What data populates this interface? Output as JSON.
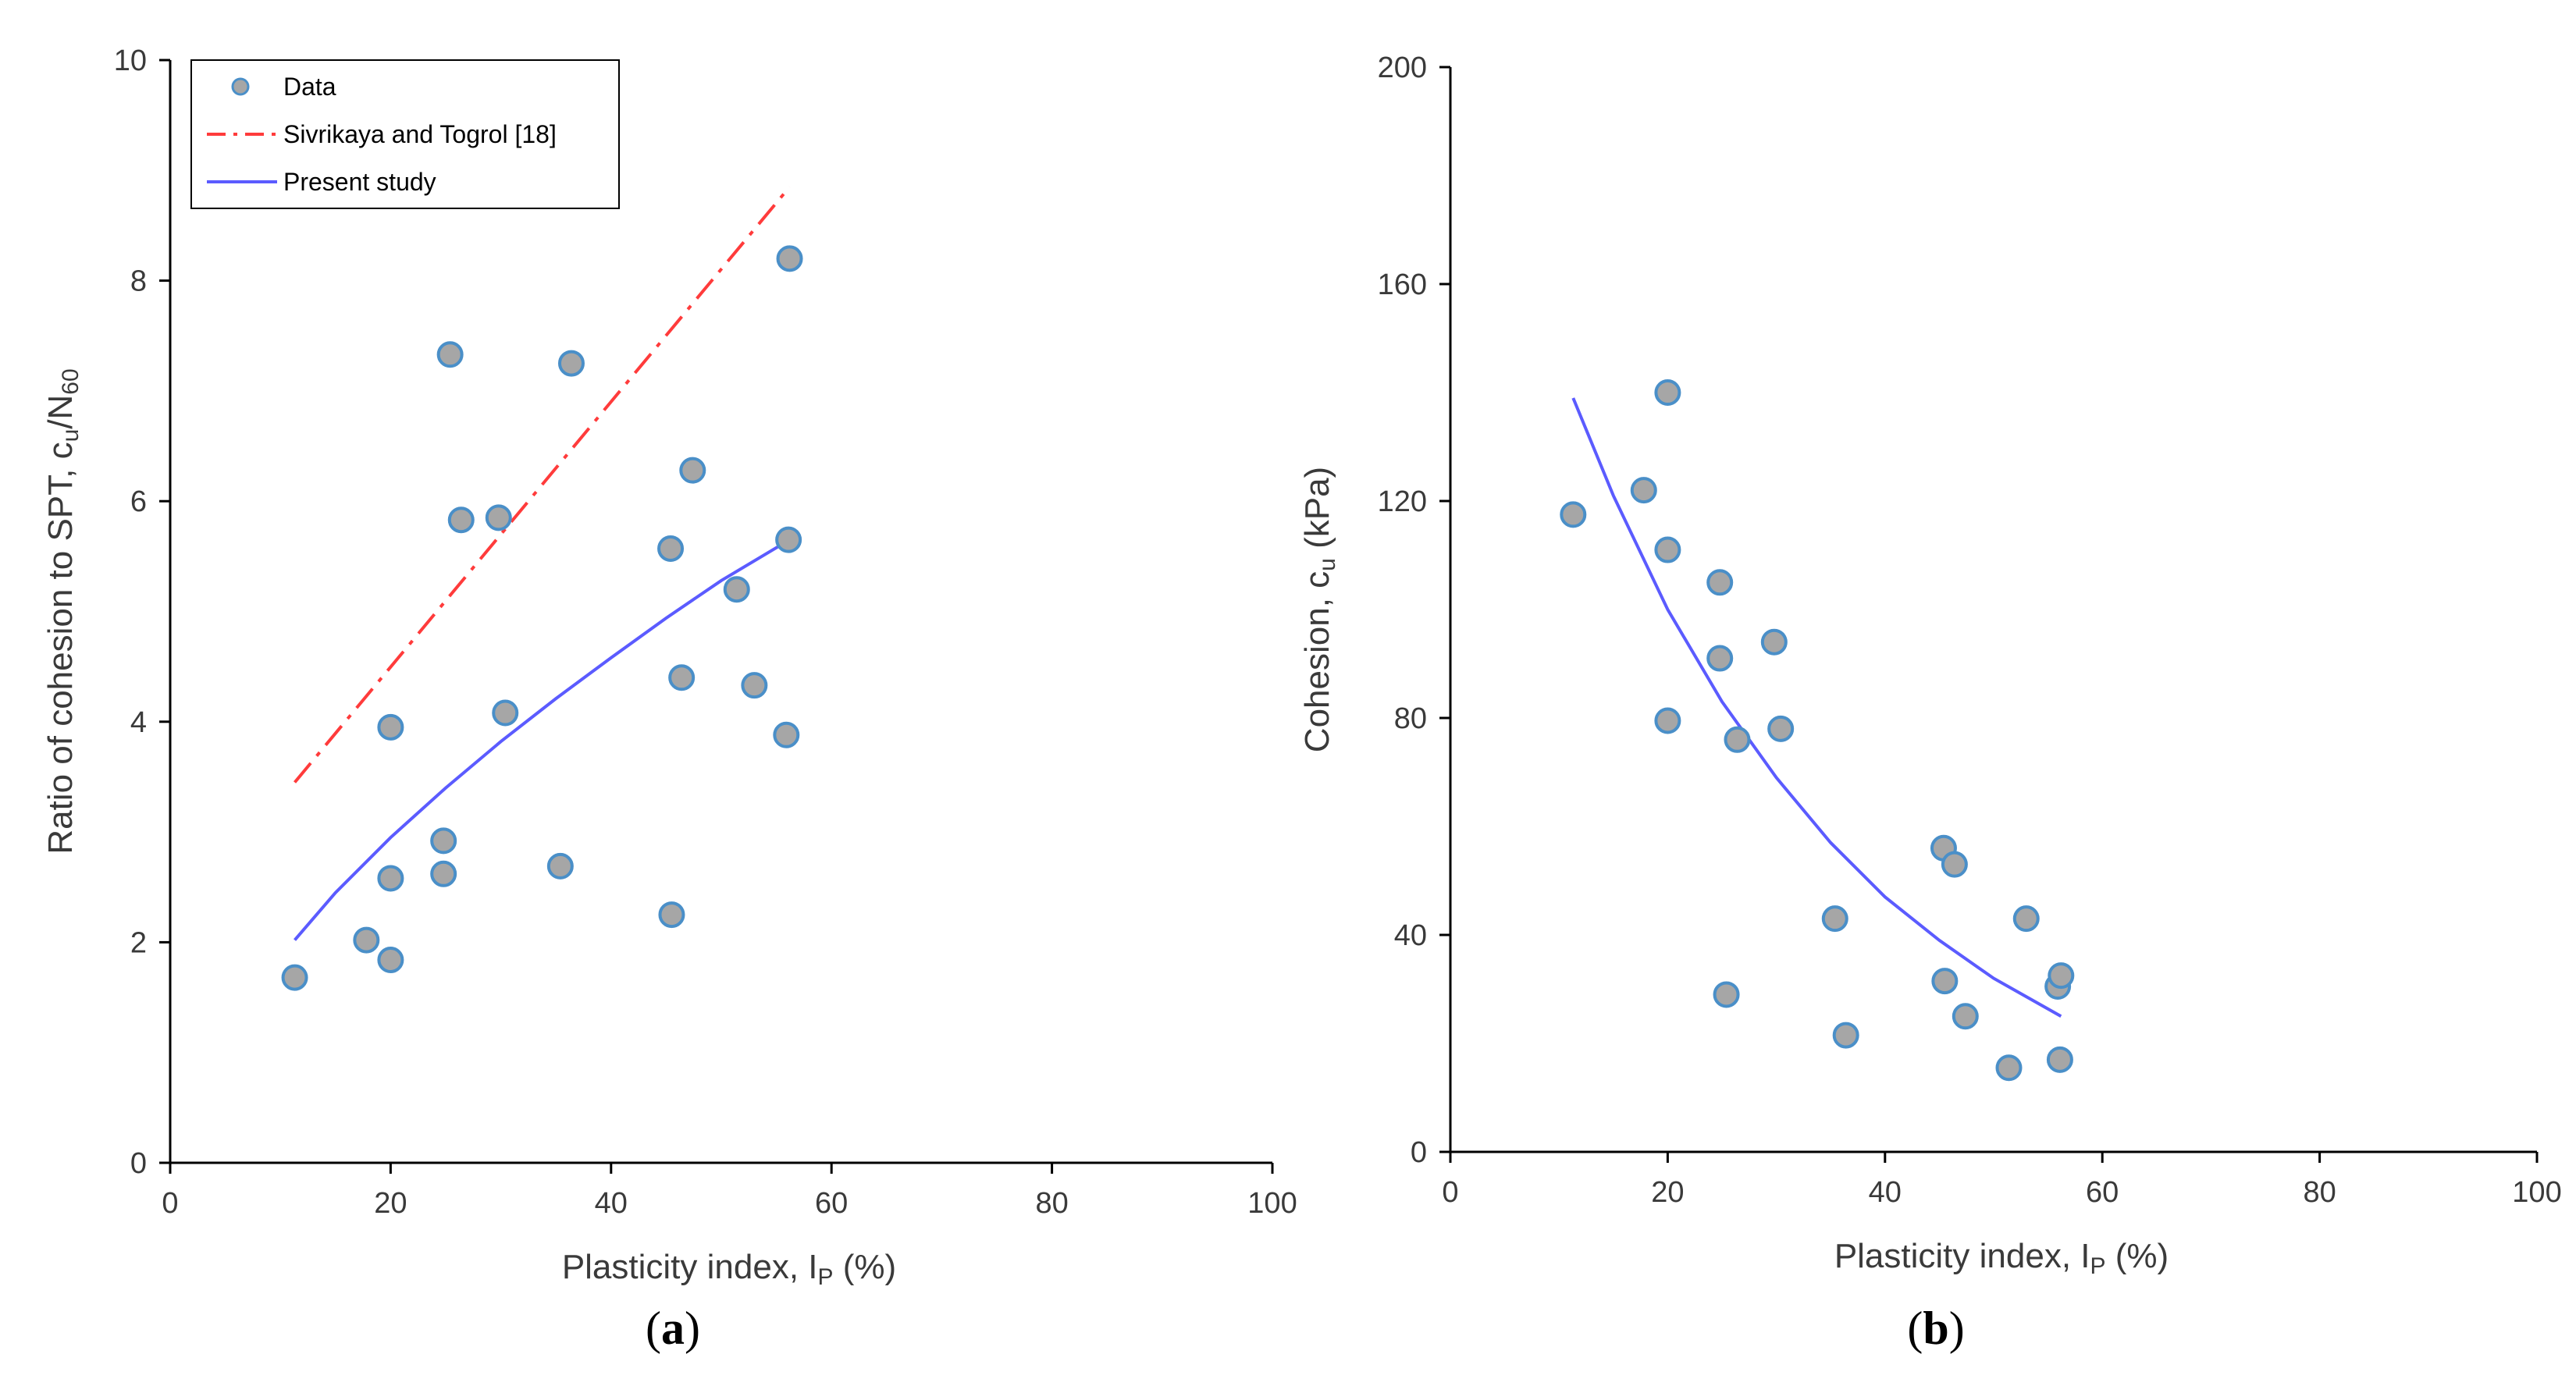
{
  "chart_data": [
    {
      "type": "scatter",
      "panel_label": "a",
      "xlabel": {
        "main": "Plasticity index, I",
        "sub": "P",
        "suffix": " (%)"
      },
      "ylabel": {
        "main": "Ratio of cohesion to SPT, c",
        "sub": "u",
        "mid": "/N",
        "sub2": "60"
      },
      "xlim": [
        0,
        100
      ],
      "ylim": [
        0,
        10
      ],
      "xticks": [
        0,
        20,
        40,
        60,
        80,
        100
      ],
      "yticks": [
        0,
        2,
        4,
        6,
        8,
        10
      ],
      "legend": {
        "position": "top-left",
        "entries": [
          {
            "label": "Data",
            "kind": "marker"
          },
          {
            "label": "Sivrikaya and Togrol [18]",
            "kind": "dashdot"
          },
          {
            "label": "Present study",
            "kind": "line"
          }
        ]
      },
      "series": [
        {
          "name": "Data",
          "kind": "scatter",
          "points": [
            [
              11.3,
              1.68
            ],
            [
              17.8,
              2.02
            ],
            [
              20.0,
              1.84
            ],
            [
              20.0,
              2.58
            ],
            [
              20.0,
              3.95
            ],
            [
              24.8,
              2.92
            ],
            [
              24.8,
              2.62
            ],
            [
              25.4,
              7.33
            ],
            [
              26.4,
              5.83
            ],
            [
              29.8,
              5.85
            ],
            [
              30.4,
              4.08
            ],
            [
              35.4,
              2.69
            ],
            [
              36.4,
              7.25
            ],
            [
              45.4,
              5.57
            ],
            [
              45.5,
              2.25
            ],
            [
              46.4,
              4.4
            ],
            [
              47.4,
              6.28
            ],
            [
              51.4,
              5.2
            ],
            [
              53.0,
              4.33
            ],
            [
              55.9,
              3.88
            ],
            [
              56.1,
              5.65
            ],
            [
              56.2,
              8.2
            ]
          ]
        },
        {
          "name": "Sivrikaya and Togrol [18]",
          "kind": "line",
          "style": "dashdot",
          "color": "#ff3b3b",
          "points": [
            [
              11.3,
              3.45
            ],
            [
              56.2,
              8.85
            ]
          ]
        },
        {
          "name": "Present study",
          "kind": "line",
          "style": "solid",
          "color": "#5b5bff",
          "points": [
            [
              11.3,
              2.02
            ],
            [
              15,
              2.45
            ],
            [
              20,
              2.95
            ],
            [
              25,
              3.4
            ],
            [
              30,
              3.82
            ],
            [
              35,
              4.21
            ],
            [
              40,
              4.58
            ],
            [
              45,
              4.94
            ],
            [
              50,
              5.28
            ],
            [
              56.2,
              5.65
            ]
          ]
        }
      ]
    },
    {
      "type": "scatter",
      "panel_label": "b",
      "xlabel": {
        "main": "Plasticity index, I",
        "sub": "P",
        "suffix": " (%)"
      },
      "ylabel": {
        "main": "Cohesion, c",
        "sub": "u",
        "suffix": " (kPa)"
      },
      "xlim": [
        0,
        100
      ],
      "ylim": [
        0,
        200
      ],
      "xticks": [
        0,
        20,
        40,
        60,
        80,
        100
      ],
      "yticks": [
        0,
        40,
        80,
        120,
        160,
        200
      ],
      "series": [
        {
          "name": "Data",
          "kind": "scatter",
          "points": [
            [
              11.3,
              117.5
            ],
            [
              17.8,
              122.0
            ],
            [
              20.0,
              140.0
            ],
            [
              20.0,
              111.0
            ],
            [
              20.0,
              79.5
            ],
            [
              24.8,
              105.0
            ],
            [
              24.8,
              91.0
            ],
            [
              25.4,
              29.0
            ],
            [
              26.4,
              76.0
            ],
            [
              29.8,
              94.0
            ],
            [
              30.4,
              78.0
            ],
            [
              35.4,
              43.0
            ],
            [
              36.4,
              21.5
            ],
            [
              45.4,
              56.0
            ],
            [
              45.5,
              31.5
            ],
            [
              46.4,
              53.0
            ],
            [
              47.4,
              25.0
            ],
            [
              51.4,
              15.5
            ],
            [
              53.0,
              43.0
            ],
            [
              55.9,
              30.5
            ],
            [
              56.1,
              17.0
            ],
            [
              56.2,
              32.5
            ]
          ]
        },
        {
          "name": "Present study",
          "kind": "line",
          "style": "solid",
          "color": "#5b5bff",
          "points": [
            [
              11.3,
              139.0
            ],
            [
              15,
              121.0
            ],
            [
              20,
              100.0
            ],
            [
              25,
              83.0
            ],
            [
              30,
              69.0
            ],
            [
              35,
              57.0
            ],
            [
              40,
              47.0
            ],
            [
              45,
              39.0
            ],
            [
              50,
              32.0
            ],
            [
              56.2,
              25.0
            ]
          ]
        }
      ]
    }
  ]
}
